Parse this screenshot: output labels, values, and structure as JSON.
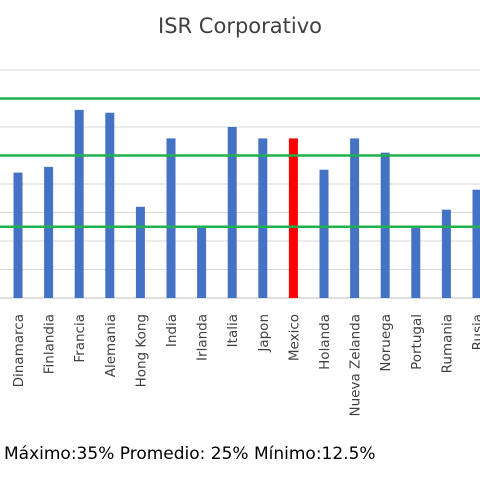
{
  "chart_data": {
    "type": "bar",
    "title": "ISR Corporativo",
    "categories": [
      "Dinamarca",
      "Finlandia",
      "Francia",
      "Alemania",
      "Hong Kong",
      "India",
      "Irlanda",
      "Italia",
      "Japon",
      "Mexico",
      "Holanda",
      "Nueva Zelanda",
      "Noruega",
      "Portugal",
      "Rumania",
      "Rusia"
    ],
    "values": [
      22,
      23,
      33,
      32.5,
      16,
      28,
      12.5,
      30,
      28,
      28,
      22.5,
      28,
      25.5,
      12.5,
      15.5,
      19
    ],
    "highlight_category": "Mexico",
    "bar_color": "#4472c4",
    "highlight_color": "#ff0000",
    "reference_lines": [
      {
        "name": "Máximo",
        "value": 35
      },
      {
        "name": "Promedio",
        "value": 25
      },
      {
        "name": "Mínimo",
        "value": 12.5
      }
    ],
    "reference_color": "#22b14c",
    "ylim": [
      0,
      40
    ],
    "grid": true,
    "xlabel": "",
    "ylabel": ""
  },
  "footer_text": "Máximo:35% Promedio: 25% Mínimo:12.5%"
}
